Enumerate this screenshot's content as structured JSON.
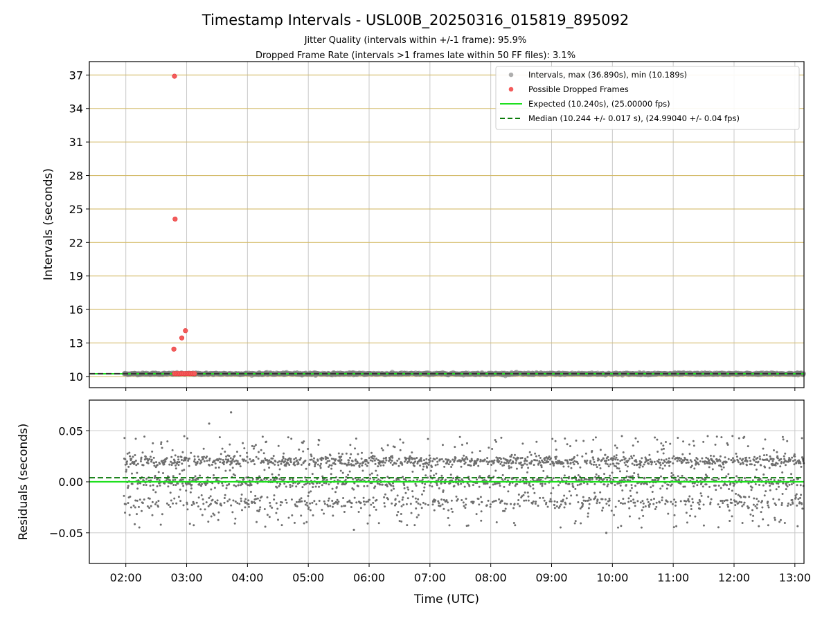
{
  "chart_data": {
    "title": "Timestamp Intervals - USL00B_20250316_015819_895092",
    "subtitle_lines": [
      "Jitter Quality (intervals within +/-1 frame): 95.9%",
      "Dropped Frame Rate (intervals >1 frames late within 50 FF files): 3.1%"
    ],
    "xlabel": "Time (UTC)",
    "x_tick_labels": [
      "02:00",
      "03:00",
      "04:00",
      "05:00",
      "06:00",
      "07:00",
      "08:00",
      "09:00",
      "10:00",
      "11:00",
      "12:00",
      "13:00"
    ],
    "x_range_hours": [
      1.4,
      13.15
    ],
    "shared_x": true,
    "panels": [
      {
        "type": "scatter",
        "ylabel": "Intervals (seconds)",
        "ylim": [
          9.0,
          38.2
        ],
        "y_ticks": [
          10,
          13,
          16,
          19,
          22,
          25,
          28,
          31,
          34,
          37
        ],
        "y_tick_labels": [
          "10",
          "13",
          "16",
          "19",
          "22",
          "25",
          "28",
          "31",
          "34",
          "37"
        ],
        "horizontal_grid_color": "#d4bb6a",
        "vertical_grid": true,
        "legend_position": "upper right",
        "series": [
          {
            "name": "Intervals, max (36.890s), min (10.189s)",
            "kind": "scatter",
            "color": "#7a7a7a",
            "x_range": [
              1.97,
              13.15
            ],
            "y_center": 10.244,
            "y_spread": 0.017
          },
          {
            "name": "Possible Dropped Frames",
            "kind": "scatter",
            "color": "#f35b5b",
            "points": [
              [
                2.8,
                36.89
              ],
              [
                2.81,
                24.1
              ],
              [
                2.79,
                12.45
              ],
              [
                2.92,
                13.45
              ],
              [
                2.98,
                14.1
              ],
              [
                2.8,
                10.26
              ],
              [
                2.83,
                10.26
              ],
              [
                2.86,
                10.26
              ],
              [
                2.89,
                10.26
              ],
              [
                2.92,
                10.26
              ],
              [
                2.95,
                10.26
              ],
              [
                2.98,
                10.26
              ],
              [
                3.01,
                10.26
              ],
              [
                3.04,
                10.26
              ],
              [
                3.07,
                10.26
              ],
              [
                3.1,
                10.26
              ],
              [
                3.13,
                10.26
              ]
            ]
          },
          {
            "name": "Expected (10.240s), (25.00000 fps)",
            "kind": "hline",
            "color": "#1ee01e",
            "y": 10.24
          },
          {
            "name": "Median (10.244 +/- 0.017 s), (24.99040 +/- 0.04 fps)",
            "kind": "hline-dashed",
            "color": "#0a7a0a",
            "y": 10.244
          }
        ]
      },
      {
        "type": "scatter",
        "ylabel": "Residuals (seconds)",
        "ylim": [
          -0.08,
          0.08
        ],
        "y_ticks": [
          0.05,
          0.0,
          -0.05
        ],
        "y_tick_labels": [
          "0.05",
          "0.00",
          "−0.05"
        ],
        "horizontal_grid": true,
        "vertical_grid": true,
        "series": [
          {
            "kind": "scatter",
            "color": "#6e6e6e",
            "x_range": [
              1.97,
              13.15
            ],
            "bands": [
              0.0,
              0.02,
              -0.02
            ],
            "notable_points": [
              [
                3.37,
                0.057
              ],
              [
                3.73,
                0.068
              ],
              [
                5.75,
                -0.047
              ],
              [
                9.9,
                -0.05
              ]
            ]
          },
          {
            "kind": "hline",
            "color": "#1ee01e",
            "y": 0.0
          },
          {
            "kind": "hline-dashed",
            "color": "#0a7a0a",
            "y": 0.004
          }
        ]
      }
    ]
  }
}
